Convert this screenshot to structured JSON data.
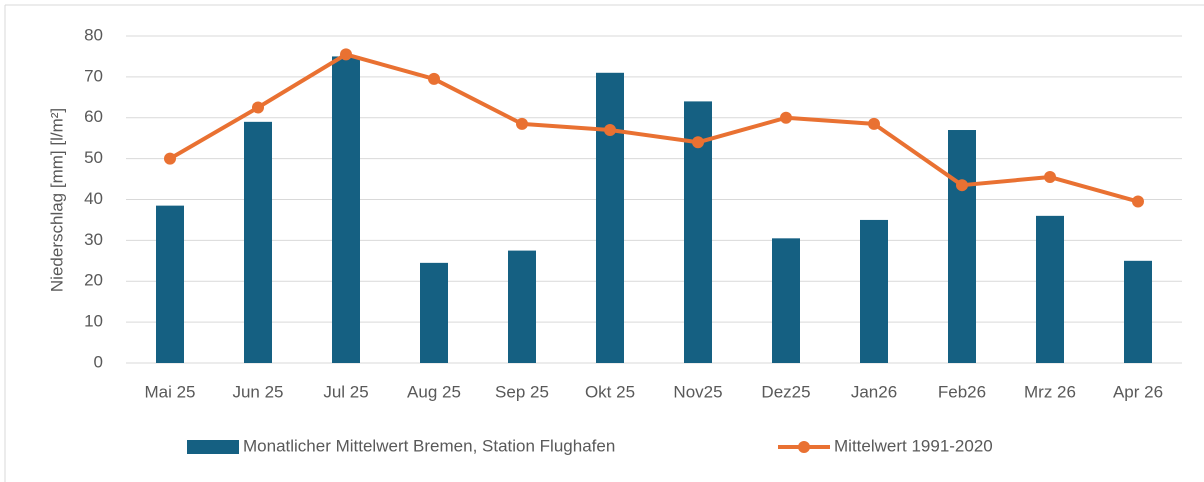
{
  "chart_data": {
    "type": "bar",
    "y_label": "Niederschlag [mm] [l/m²]",
    "categories": [
      "Mai 25",
      "Jun 25",
      "Jul 25",
      "Aug 25",
      "Sep 25",
      "Okt 25",
      "Nov25",
      "Dez25",
      "Jan26",
      "Feb26",
      "Mrz 26",
      "Apr 26"
    ],
    "series": [
      {
        "name": "Monatlicher Mittelwert Bremen, Station Flughafen",
        "type": "bar",
        "color": "#156082",
        "values": [
          38.5,
          59,
          75,
          24.5,
          27.5,
          71,
          64,
          30.5,
          35,
          57,
          36,
          25
        ]
      },
      {
        "name": "Mittelwert 1991-2020",
        "type": "line",
        "color": "#e97132",
        "values": [
          50,
          62.5,
          75.5,
          69.5,
          58.5,
          57,
          54,
          60,
          58.5,
          43.5,
          45.5,
          39.5
        ]
      }
    ],
    "ylim": [
      0,
      80
    ],
    "yticks": [
      0,
      10,
      20,
      30,
      40,
      50,
      60,
      70,
      80
    ],
    "grid": true,
    "legend": "bottom"
  }
}
